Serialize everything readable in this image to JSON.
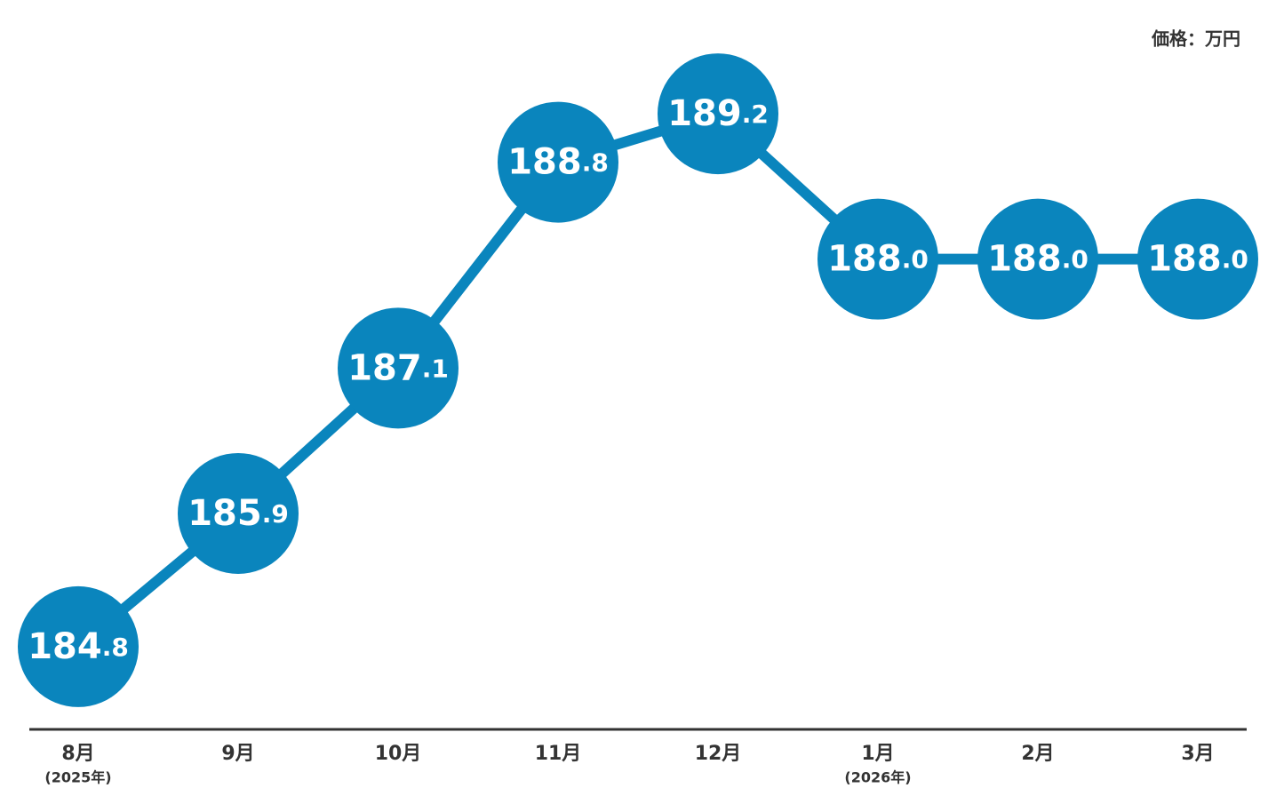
{
  "chart_data": {
    "type": "line",
    "unit_label": "価格：万円",
    "categories": [
      "8月",
      "9月",
      "10月",
      "11月",
      "12月",
      "1月",
      "2月",
      "3月"
    ],
    "category_notes": [
      "(2025年)",
      null,
      null,
      null,
      null,
      "(2026年)",
      null,
      null
    ],
    "series": [
      {
        "color": "#0a85bd",
        "values": [
          184.8,
          185.9,
          187.1,
          188.8,
          189.2,
          188.0,
          188.0,
          188.0
        ],
        "value_labels": [
          "184.8",
          "185.9",
          "187.1",
          "188.8",
          "189.2",
          "188.0",
          "188.0",
          "188.0"
        ]
      }
    ],
    "ylim": [
      184,
      190
    ]
  }
}
